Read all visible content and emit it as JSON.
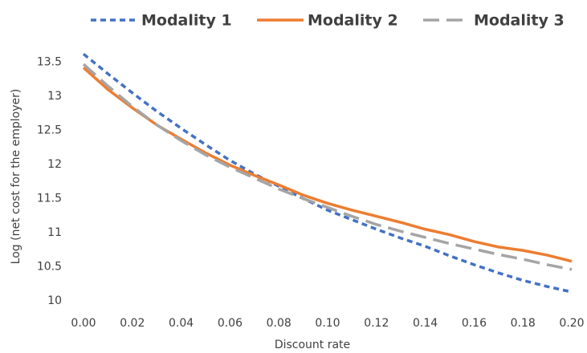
{
  "chart_data": {
    "type": "line",
    "x_label": "Discount rate",
    "y_label": "Log (net cost for the employer)",
    "x": [
      0,
      0.01,
      0.02,
      0.03,
      0.04,
      0.05,
      0.06,
      0.07,
      0.08,
      0.09,
      0.1,
      0.11,
      0.12,
      0.13,
      0.14,
      0.15,
      0.16,
      0.17,
      0.18,
      0.19,
      0.2
    ],
    "series": [
      {
        "name": "Modality 1",
        "color": "#4472c4",
        "line_style": "dashed",
        "values": [
          13.62,
          13.33,
          13.05,
          12.78,
          12.53,
          12.29,
          12.06,
          11.86,
          11.68,
          11.5,
          11.33,
          11.19,
          11.05,
          10.92,
          10.8,
          10.66,
          10.53,
          10.41,
          10.3,
          10.21,
          10.13
        ]
      },
      {
        "name": "Modality 2",
        "color": "#ed7d31",
        "line_style": "solid",
        "values": [
          13.42,
          13.1,
          12.83,
          12.58,
          12.37,
          12.17,
          11.99,
          11.84,
          11.7,
          11.55,
          11.43,
          11.33,
          11.24,
          11.15,
          11.05,
          10.97,
          10.87,
          10.79,
          10.74,
          10.67,
          10.58
        ]
      },
      {
        "name": "Modality 3",
        "color": "#a5a5a5",
        "line_style": "long-dashed",
        "values": [
          13.47,
          13.15,
          12.85,
          12.58,
          12.35,
          12.14,
          11.96,
          11.8,
          11.64,
          11.5,
          11.37,
          11.24,
          11.12,
          11.02,
          10.93,
          10.84,
          10.76,
          10.68,
          10.61,
          10.53,
          10.46
        ]
      }
    ],
    "xlim": [
      0,
      0.2
    ],
    "xticks": [
      {
        "value": 0,
        "label": "0.00"
      },
      {
        "value": 0.02,
        "label": "0.02"
      },
      {
        "value": 0.04,
        "label": "0.04"
      },
      {
        "value": 0.06,
        "label": "0.06"
      },
      {
        "value": 0.08,
        "label": "0.08"
      },
      {
        "value": 0.1,
        "label": "0.10"
      },
      {
        "value": 0.12,
        "label": "0.12"
      },
      {
        "value": 0.14,
        "label": "0.14"
      },
      {
        "value": 0.16,
        "label": "0.16"
      },
      {
        "value": 0.18,
        "label": "0.18"
      },
      {
        "value": 0.2,
        "label": "0.20"
      }
    ],
    "ylim": [
      10,
      13.65
    ],
    "yticks": [
      10,
      10.5,
      11,
      11.5,
      12,
      12.5,
      13,
      13.5
    ],
    "grid": false,
    "legend": "top"
  }
}
